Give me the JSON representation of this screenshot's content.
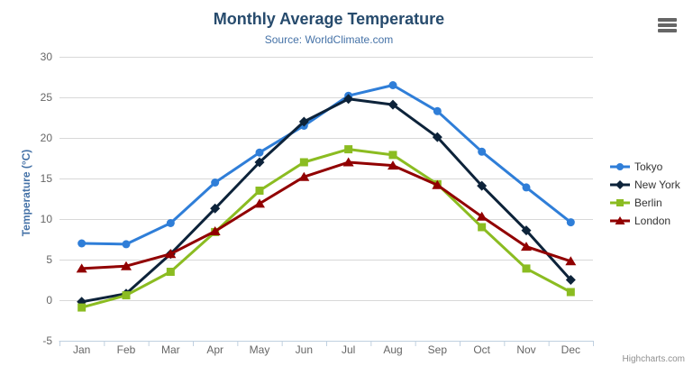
{
  "header": {
    "title": "Monthly Average Temperature",
    "subtitle": "Source: WorldClimate.com"
  },
  "credits": "Highcharts.com",
  "export_menu_icon": "hamburger-menu-icon",
  "colors": {
    "title_text": "#274b6d",
    "subtitle_text": "#4572a7",
    "axis_title_text": "#4572a7",
    "axis_label_text": "#666666",
    "grid_line": "#d8d8d8",
    "axis_line": "#c0d0e0",
    "legend_text": "#333333",
    "credits_text": "#909090",
    "menu_icon": "#666666"
  },
  "chart_data": {
    "type": "line",
    "title": "Monthly Average Temperature",
    "subtitle": "Source: WorldClimate.com",
    "xlabel": "",
    "ylabel": "Temperature (°C)",
    "ylim": [
      -5,
      30
    ],
    "ytick_step": 5,
    "grid": true,
    "legend_position": "right",
    "categories": [
      "Jan",
      "Feb",
      "Mar",
      "Apr",
      "May",
      "Jun",
      "Jul",
      "Aug",
      "Sep",
      "Oct",
      "Nov",
      "Dec"
    ],
    "series": [
      {
        "name": "Tokyo",
        "color": "#2f7ed8",
        "marker": "circle",
        "values": [
          7.0,
          6.9,
          9.5,
          14.5,
          18.2,
          21.5,
          25.2,
          26.5,
          23.3,
          18.3,
          13.9,
          9.6
        ]
      },
      {
        "name": "New York",
        "color": "#0d233a",
        "marker": "diamond",
        "values": [
          -0.2,
          0.8,
          5.7,
          11.3,
          17.0,
          22.0,
          24.8,
          24.1,
          20.1,
          14.1,
          8.6,
          2.5
        ]
      },
      {
        "name": "Berlin",
        "color": "#8bbc21",
        "marker": "square",
        "values": [
          -0.9,
          0.6,
          3.5,
          8.4,
          13.5,
          17.0,
          18.6,
          17.9,
          14.3,
          9.0,
          3.9,
          1.0
        ]
      },
      {
        "name": "London",
        "color": "#910000",
        "marker": "triangle",
        "values": [
          3.9,
          4.2,
          5.7,
          8.5,
          11.9,
          15.2,
          17.0,
          16.6,
          14.2,
          10.3,
          6.6,
          4.8
        ]
      }
    ]
  }
}
